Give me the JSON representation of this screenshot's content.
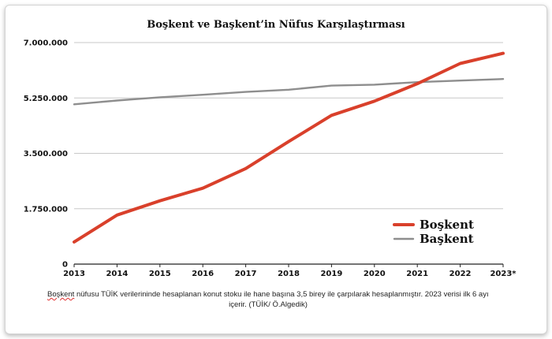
{
  "chart_data": {
    "type": "line",
    "title": "Boşkent ve Başkent’in Nüfus Karşılaştırması",
    "xlabel": "",
    "ylabel": "",
    "categories": [
      "2013",
      "2014",
      "2015",
      "2016",
      "2017",
      "2018",
      "2019",
      "2020",
      "2021",
      "2022",
      "2023*"
    ],
    "ylim": [
      0,
      7000000
    ],
    "yticks": [
      0,
      1750000,
      3500000,
      5250000,
      7000000
    ],
    "ytick_labels": [
      "0",
      "1.750.000",
      "3.500.000",
      "5.250.000",
      "7.000.000"
    ],
    "grid": true,
    "legend_position": "bottom-right",
    "series": [
      {
        "name": "Boşkent",
        "color": "#d9402b",
        "values": [
          700000,
          1550000,
          2000000,
          2400000,
          3020000,
          3870000,
          4700000,
          5150000,
          5700000,
          6340000,
          6660000
        ]
      },
      {
        "name": "Başkent",
        "color": "#8e8e8e",
        "values": [
          5050000,
          5170000,
          5270000,
          5350000,
          5440000,
          5510000,
          5640000,
          5670000,
          5750000,
          5800000,
          5850000
        ]
      }
    ]
  },
  "caption": {
    "lead": "Boşkent",
    "line1": " nüfusu TÜİK verilerininde hesaplanan konut stoku ile hane başına 3,5 birey ile çarpılarak hesaplanmıştır. 2023 verisi ilk 6 ayı",
    "line2": "içerir. (TÜİK/ Ö.Algedik)"
  }
}
